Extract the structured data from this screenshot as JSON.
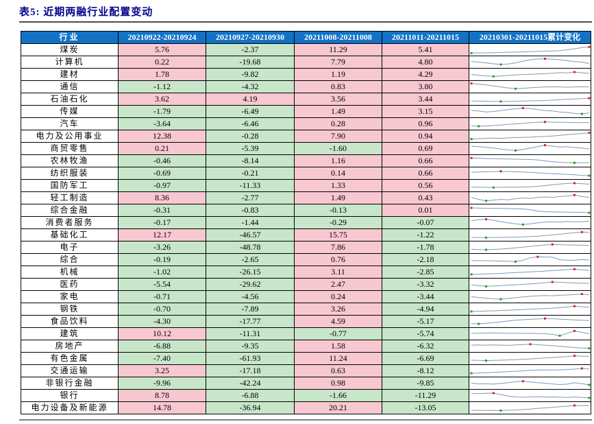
{
  "title": "表5: 近期两融行业配置变动",
  "colors": {
    "title_color": "#00008B",
    "header_bg": "#1272C6",
    "positive_bg": "#F8C8D1",
    "negative_bg": "#C8E6C9",
    "spark_line": "#7E99B8",
    "spark_max": "#E02020",
    "spark_min": "#21A121"
  },
  "table": {
    "headers": [
      "行业",
      "20210922-20210924",
      "20210927-20210930",
      "20211008-20211008",
      "20211011-20211015",
      "20210301-20211015累计变化"
    ],
    "rows": [
      {
        "industry": "煤炭",
        "values": [
          "5.76",
          "-2.37",
          "11.29",
          "5.41"
        ],
        "spark": {
          "points": [
            0.15,
            0.17,
            0.18,
            0.2,
            0.22,
            0.24,
            0.26,
            0.28,
            0.3,
            0.33,
            0.35,
            0.37,
            0.4,
            0.5,
            0.6,
            0.72,
            0.8
          ],
          "min": 0,
          "max": 16
        }
      },
      {
        "industry": "计算机",
        "values": [
          "0.22",
          "-19.68",
          "7.79",
          "4.80"
        ],
        "spark": {
          "points": [
            0.55,
            0.5,
            0.42,
            0.32,
            0.25,
            0.3,
            0.42,
            0.6,
            0.75,
            0.82,
            0.85,
            0.8,
            0.75,
            0.65,
            0.55,
            0.5,
            0.35
          ],
          "min": 4,
          "max": 10
        }
      },
      {
        "industry": "建材",
        "values": [
          "1.78",
          "-9.82",
          "1.19",
          "4.29"
        ],
        "spark": {
          "points": [
            0.5,
            0.42,
            0.34,
            0.3,
            0.34,
            0.4,
            0.45,
            0.5,
            0.52,
            0.55,
            0.58,
            0.62,
            0.7,
            0.66,
            0.75,
            0.68,
            0.6
          ],
          "min": 3,
          "max": 14
        }
      },
      {
        "industry": "通信",
        "values": [
          "-1.12",
          "-4.32",
          "0.83",
          "3.80"
        ],
        "spark": {
          "points": [
            0.85,
            0.78,
            0.7,
            0.6,
            0.48,
            0.38,
            0.3,
            0.33,
            0.4,
            0.45,
            0.48,
            0.5,
            0.48,
            0.46,
            0.48,
            0.5,
            0.48
          ],
          "min": 6,
          "max": 0
        }
      },
      {
        "industry": "石油石化",
        "values": [
          "3.62",
          "4.19",
          "3.56",
          "3.44"
        ],
        "spark": {
          "points": [
            0.3,
            0.29,
            0.28,
            0.27,
            0.26,
            0.27,
            0.28,
            0.3,
            0.32,
            0.34,
            0.36,
            0.4,
            0.44,
            0.48,
            0.52,
            0.56,
            0.6
          ],
          "min": 4,
          "max": 16
        }
      },
      {
        "industry": "传媒",
        "values": [
          "-1.79",
          "-6.49",
          "1.49",
          "3.15"
        ],
        "spark": {
          "points": [
            0.6,
            0.55,
            0.45,
            0.5,
            0.6,
            0.7,
            0.78,
            0.85,
            0.8,
            0.7,
            0.6,
            0.55,
            0.45,
            0.4,
            0.3,
            0.25,
            0.35
          ],
          "min": 15,
          "max": 7
        }
      },
      {
        "industry": "汽车",
        "values": [
          "-3.64",
          "-6.46",
          "0.28",
          "0.96"
        ],
        "spark": {
          "points": [
            0.3,
            0.25,
            0.28,
            0.33,
            0.38,
            0.44,
            0.5,
            0.55,
            0.62,
            0.66,
            0.7,
            0.68,
            0.66,
            0.65,
            0.64,
            0.63,
            0.62
          ],
          "min": 1,
          "max": 10
        }
      },
      {
        "industry": "电力及公用事业",
        "values": [
          "12.38",
          "-0.28",
          "7.90",
          "0.94"
        ],
        "spark": {
          "points": [
            0.2,
            0.24,
            0.28,
            0.3,
            0.28,
            0.32,
            0.36,
            0.38,
            0.4,
            0.44,
            0.48,
            0.52,
            0.58,
            0.66,
            0.72,
            0.78,
            0.85
          ],
          "min": 0,
          "max": 16
        }
      },
      {
        "industry": "商贸零售",
        "values": [
          "0.21",
          "-5.39",
          "-1.60",
          "0.69"
        ],
        "spark": {
          "points": [
            0.75,
            0.7,
            0.62,
            0.55,
            0.45,
            0.35,
            0.3,
            0.4,
            0.55,
            0.7,
            0.85,
            0.75,
            0.65,
            0.7,
            0.6,
            0.55,
            0.45
          ],
          "min": 6,
          "max": 10
        }
      },
      {
        "industry": "农林牧渔",
        "values": [
          "-0.46",
          "-8.14",
          "1.16",
          "0.66"
        ],
        "spark": {
          "points": [
            0.8,
            0.78,
            0.75,
            0.73,
            0.71,
            0.7,
            0.68,
            0.66,
            0.64,
            0.6,
            0.5,
            0.42,
            0.36,
            0.32,
            0.3,
            0.31,
            0.32
          ],
          "min": 14,
          "max": 0
        }
      },
      {
        "industry": "纺织服装",
        "values": [
          "-0.69",
          "-0.21",
          "0.14",
          "0.66"
        ],
        "spark": {
          "points": [
            0.6,
            0.63,
            0.66,
            0.68,
            0.7,
            0.68,
            0.65,
            0.62,
            0.58,
            0.54,
            0.5,
            0.46,
            0.42,
            0.38,
            0.34,
            0.28,
            0.25
          ],
          "min": 16,
          "max": 4
        }
      },
      {
        "industry": "国防军工",
        "values": [
          "-0.97",
          "-11.33",
          "1.33",
          "0.56"
        ],
        "spark": {
          "points": [
            0.35,
            0.33,
            0.32,
            0.3,
            0.32,
            0.34,
            0.33,
            0.35,
            0.38,
            0.42,
            0.5,
            0.58,
            0.66,
            0.72,
            0.75,
            0.7,
            0.65
          ],
          "min": 3,
          "max": 14
        }
      },
      {
        "industry": "轻工制造",
        "values": [
          "8.36",
          "-2.77",
          "1.49",
          "0.43"
        ],
        "spark": {
          "points": [
            0.55,
            0.35,
            0.2,
            0.28,
            0.35,
            0.3,
            0.42,
            0.5,
            0.45,
            0.55,
            0.6,
            0.55,
            0.65,
            0.7,
            0.8,
            0.65,
            0.55
          ],
          "min": 2,
          "max": 14
        }
      },
      {
        "industry": "综合金融",
        "values": [
          "-0.31",
          "-0.83",
          "-0.13",
          "0.01"
        ],
        "spark": {
          "points": [
            0.75,
            0.73,
            0.71,
            0.7,
            0.69,
            0.68,
            0.66,
            0.64,
            0.55,
            0.42,
            0.35,
            0.33,
            0.32,
            0.31,
            0.3,
            0.28,
            0.25
          ],
          "min": 16,
          "max": 0
        }
      },
      {
        "industry": "消费者服务",
        "values": [
          "-0.17",
          "-1.44",
          "-0.29",
          "-0.07"
        ],
        "spark": {
          "points": [
            0.7,
            0.8,
            0.85,
            0.75,
            0.6,
            0.48,
            0.38,
            0.3,
            0.38,
            0.48,
            0.55,
            0.6,
            0.55,
            0.62,
            0.58,
            0.6,
            0.65
          ],
          "min": 7,
          "max": 2
        }
      },
      {
        "industry": "基础化工",
        "values": [
          "12.17",
          "-46.57",
          "15.75",
          "-1.22"
        ],
        "spark": {
          "points": [
            0.25,
            0.24,
            0.23,
            0.24,
            0.25,
            0.26,
            0.28,
            0.3,
            0.34,
            0.38,
            0.44,
            0.5,
            0.58,
            0.66,
            0.74,
            0.8,
            0.78
          ],
          "min": 2,
          "max": 15
        }
      },
      {
        "industry": "电子",
        "values": [
          "-3.26",
          "-48.78",
          "7.86",
          "-1.78"
        ],
        "spark": {
          "points": [
            0.3,
            0.26,
            0.25,
            0.28,
            0.32,
            0.38,
            0.45,
            0.52,
            0.6,
            0.68,
            0.74,
            0.8,
            0.78,
            0.75,
            0.73,
            0.72,
            0.7
          ],
          "min": 2,
          "max": 11
        }
      },
      {
        "industry": "综合",
        "values": [
          "-0.19",
          "-2.65",
          "0.76",
          "-2.18"
        ],
        "spark": {
          "points": [
            0.4,
            0.4,
            0.39,
            0.38,
            0.36,
            0.33,
            0.3,
            0.45,
            0.7,
            0.8,
            0.78,
            0.76,
            0.5,
            0.45,
            0.44,
            0.52,
            0.46
          ],
          "min": 6,
          "max": 9
        }
      },
      {
        "industry": "机械",
        "values": [
          "-1.02",
          "-26.15",
          "3.11",
          "-2.85"
        ],
        "spark": {
          "points": [
            0.25,
            0.27,
            0.3,
            0.33,
            0.36,
            0.4,
            0.44,
            0.48,
            0.52,
            0.56,
            0.6,
            0.65,
            0.7,
            0.75,
            0.8,
            0.72,
            0.68
          ],
          "min": 0,
          "max": 14
        }
      },
      {
        "industry": "医药",
        "values": [
          "-5.54",
          "-29.62",
          "2.47",
          "-3.32"
        ],
        "spark": {
          "points": [
            0.45,
            0.38,
            0.3,
            0.33,
            0.38,
            0.42,
            0.46,
            0.5,
            0.55,
            0.6,
            0.68,
            0.75,
            0.72,
            0.68,
            0.65,
            0.62,
            0.6
          ],
          "min": 2,
          "max": 11
        }
      },
      {
        "industry": "家电",
        "values": [
          "-0.71",
          "-4.56",
          "0.24",
          "-3.44"
        ],
        "spark": {
          "points": [
            0.5,
            0.42,
            0.35,
            0.28,
            0.25,
            0.32,
            0.4,
            0.48,
            0.55,
            0.6,
            0.63,
            0.6,
            0.65,
            0.68,
            0.72,
            0.78,
            0.7
          ],
          "min": 4,
          "max": 15
        }
      },
      {
        "industry": "钢铁",
        "values": [
          "-0.70",
          "-7.89",
          "3.26",
          "-4.94"
        ],
        "spark": {
          "points": [
            0.25,
            0.28,
            0.3,
            0.32,
            0.35,
            0.38,
            0.42,
            0.45,
            0.48,
            0.52,
            0.56,
            0.6,
            0.65,
            0.72,
            0.8,
            0.74,
            0.7
          ],
          "min": 0,
          "max": 14
        }
      },
      {
        "industry": "食品饮料",
        "values": [
          "-4.30",
          "-17.77",
          "4.59",
          "-5.17"
        ],
        "spark": {
          "points": [
            0.28,
            0.25,
            0.3,
            0.38,
            0.46,
            0.54,
            0.62,
            0.68,
            0.72,
            0.75,
            0.8,
            0.78,
            0.74,
            0.7,
            0.66,
            0.63,
            0.6
          ],
          "min": 1,
          "max": 10
        }
      },
      {
        "industry": "建筑",
        "values": [
          "10.12",
          "-11.31",
          "-0.77",
          "-5.74"
        ],
        "spark": {
          "points": [
            0.55,
            0.56,
            0.58,
            0.6,
            0.58,
            0.56,
            0.55,
            0.54,
            0.55,
            0.53,
            0.5,
            0.45,
            0.3,
            0.55,
            0.8,
            0.65,
            0.5
          ],
          "min": 12,
          "max": 14
        }
      },
      {
        "industry": "房地产",
        "values": [
          "-6.88",
          "-9.35",
          "1.58",
          "-6.32"
        ],
        "spark": {
          "points": [
            0.6,
            0.62,
            0.6,
            0.63,
            0.61,
            0.58,
            0.62,
            0.66,
            0.7,
            0.65,
            0.6,
            0.54,
            0.48,
            0.42,
            0.36,
            0.3,
            0.27
          ],
          "min": 16,
          "max": 8
        }
      },
      {
        "industry": "有色金属",
        "values": [
          "-7.40",
          "-61.93",
          "11.24",
          "-6.69"
        ],
        "spark": {
          "points": [
            0.32,
            0.3,
            0.28,
            0.3,
            0.32,
            0.35,
            0.38,
            0.42,
            0.46,
            0.5,
            0.55,
            0.6,
            0.65,
            0.7,
            0.78,
            0.74,
            0.72
          ],
          "min": 2,
          "max": 14
        }
      },
      {
        "industry": "交通运输",
        "values": [
          "3.25",
          "-17.18",
          "0.63",
          "-8.12"
        ],
        "spark": {
          "points": [
            0.25,
            0.27,
            0.3,
            0.34,
            0.38,
            0.42,
            0.46,
            0.5,
            0.55,
            0.58,
            0.6,
            0.58,
            0.6,
            0.64,
            0.68,
            0.75,
            0.7
          ],
          "min": 0,
          "max": 15
        }
      },
      {
        "industry": "非银行金融",
        "values": [
          "-9.96",
          "-42.24",
          "0.98",
          "-9.85"
        ],
        "spark": {
          "points": [
            0.5,
            0.42,
            0.45,
            0.4,
            0.48,
            0.55,
            0.65,
            0.7,
            0.62,
            0.55,
            0.5,
            0.42,
            0.36,
            0.4,
            0.55,
            0.45,
            0.32
          ],
          "min": 16,
          "max": 7
        }
      },
      {
        "industry": "银行",
        "values": [
          "8.78",
          "-6.88",
          "-1.66",
          "-11.29"
        ],
        "spark": {
          "points": [
            0.7,
            0.71,
            0.73,
            0.75,
            0.6,
            0.45,
            0.35,
            0.32,
            0.35,
            0.38,
            0.34,
            0.36,
            0.33,
            0.3,
            0.34,
            0.3,
            0.25
          ],
          "min": 16,
          "max": 3
        }
      },
      {
        "industry": "电力设备及新能源",
        "values": [
          "14.78",
          "-36.94",
          "20.21",
          "-13.05"
        ],
        "spark": {
          "points": [
            0.25,
            0.24,
            0.23,
            0.24,
            0.22,
            0.25,
            0.28,
            0.32,
            0.38,
            0.44,
            0.5,
            0.56,
            0.62,
            0.68,
            0.75,
            0.72,
            0.73
          ],
          "min": 4,
          "max": 14
        }
      }
    ]
  }
}
